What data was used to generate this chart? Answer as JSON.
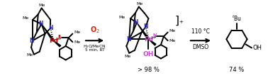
{
  "background_color": "#ffffff",
  "arrow1_text_top": "O$_2$",
  "arrow1_text_bot1": "H$_2$O/MeCN",
  "arrow1_text_bot2": "5 min, RT",
  "arrow2_text_top": "110 °C",
  "arrow2_text_bot": "DMSO",
  "yield1": "> 98 %",
  "yield2": "74 %",
  "PdII_color": "#cc0000",
  "PdIV_color": "#cc44cc",
  "N_color": "#3333bb",
  "OH_color": "#cc44cc",
  "O2_color": "#dd2200",
  "tBu_label": "$^{t}$Bu",
  "figsize": [
    3.78,
    1.17
  ],
  "dpi": 100
}
